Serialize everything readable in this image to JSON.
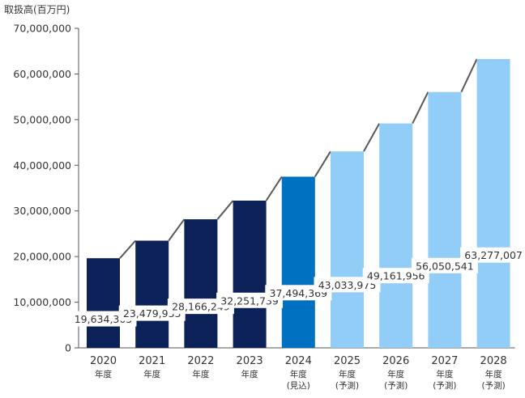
{
  "chart_data": {
    "type": "bar",
    "ylabel": "取扱高(百万円)",
    "ylim": [
      0,
      70000000
    ],
    "yticks": [
      "0",
      "10,000,000",
      "20,000,000",
      "30,000,000",
      "40,000,000",
      "50,000,000",
      "60,000,000",
      "70,000,000"
    ],
    "categories": [
      {
        "year": "2020",
        "lines": [
          "年度"
        ]
      },
      {
        "year": "2021",
        "lines": [
          "年度"
        ]
      },
      {
        "year": "2022",
        "lines": [
          "年度"
        ]
      },
      {
        "year": "2023",
        "lines": [
          "年度"
        ]
      },
      {
        "year": "2024",
        "lines": [
          "年度",
          "(見込)"
        ]
      },
      {
        "year": "2025",
        "lines": [
          "年度",
          "(予測)"
        ]
      },
      {
        "year": "2026",
        "lines": [
          "年度",
          "(予測)"
        ]
      },
      {
        "year": "2027",
        "lines": [
          "年度",
          "(予測)"
        ]
      },
      {
        "year": "2028",
        "lines": [
          "年度",
          "(予測)"
        ]
      }
    ],
    "values": [
      19634305,
      23479933,
      28166249,
      32251739,
      37494369,
      43033975,
      49161956,
      56050541,
      63277007
    ],
    "value_labels": [
      "19,634,305",
      "23,479,933",
      "28,166,249",
      "32,251,739",
      "37,494,369",
      "43,033,975",
      "49,161,956",
      "56,050,541",
      "63,277,007"
    ],
    "colors": [
      "#0b2157",
      "#0b2157",
      "#0b2157",
      "#0b2157",
      "#0070c0",
      "#92cdf7",
      "#92cdf7",
      "#92cdf7",
      "#92cdf7"
    ],
    "connector_color": "#595959",
    "grid": false,
    "legend": "none"
  }
}
